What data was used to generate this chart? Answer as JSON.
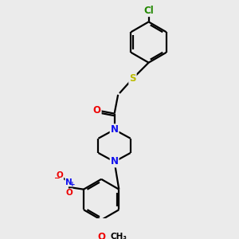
{
  "bg_color": "#ebebeb",
  "bond_color": "#000000",
  "atom_colors": {
    "N": "#1010ee",
    "O": "#ee0000",
    "S": "#bbbb00",
    "Cl": "#228800",
    "C": "#000000"
  },
  "figsize": [
    3.0,
    3.0
  ],
  "dpi": 100,
  "lw": 1.6,
  "r_hex": 28,
  "fs": 8.5
}
